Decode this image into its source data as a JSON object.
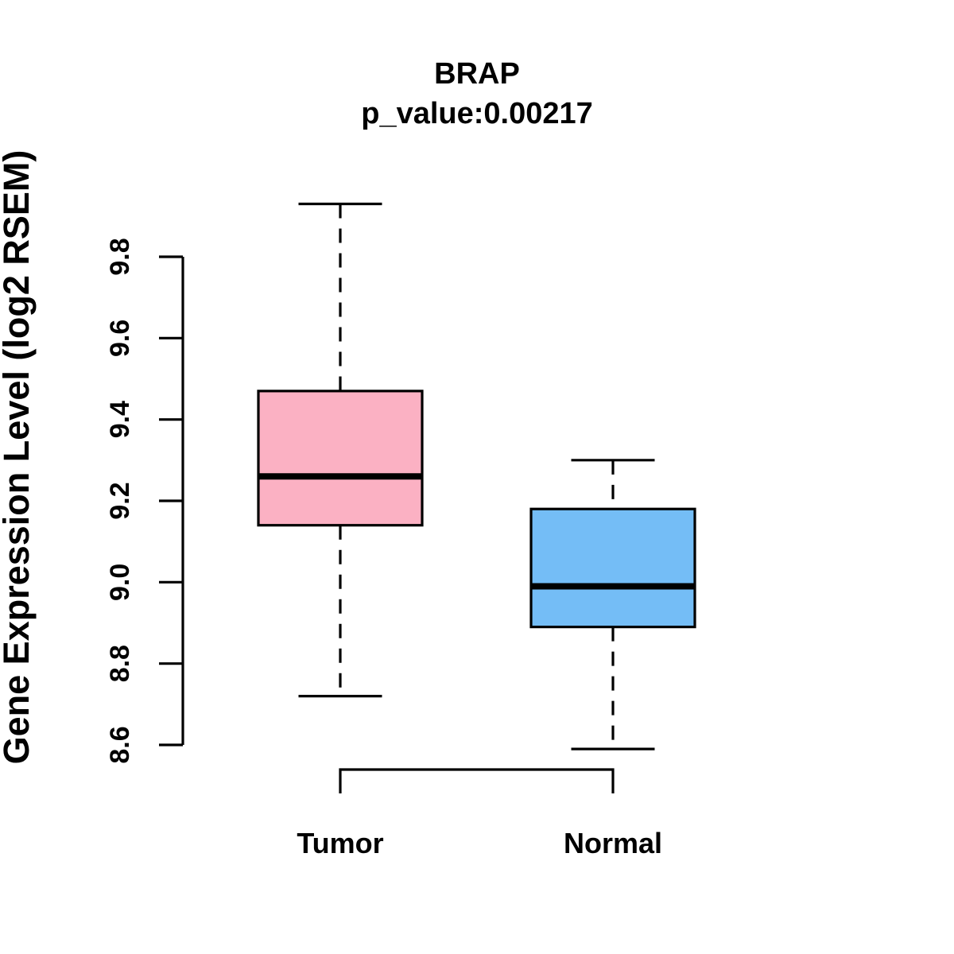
{
  "chart_data": {
    "type": "boxplot",
    "title": "BRAP",
    "subtitle": "p_value:0.00217",
    "p_value": 0.00217,
    "ylabel": "Gene Expression Level (log2 RSEM)",
    "xlabel": "",
    "ylim": [
      8.6,
      9.8
    ],
    "yticks": [
      8.6,
      8.8,
      9.0,
      9.2,
      9.4,
      9.6,
      9.8
    ],
    "ytick_labels": [
      "8.6",
      "8.8",
      "9.0",
      "9.2",
      "9.4",
      "9.6",
      "9.8"
    ],
    "grid": false,
    "legend": "none",
    "groups": [
      {
        "label": "Tumor",
        "color": "#FBB1C3",
        "lower_whisker": 8.72,
        "q1": 9.14,
        "median": 9.26,
        "q3": 9.47,
        "upper_whisker": 9.93
      },
      {
        "label": "Normal",
        "color": "#74BDF6",
        "lower_whisker": 8.59,
        "q1": 8.89,
        "median": 8.99,
        "q3": 9.18,
        "upper_whisker": 9.3
      }
    ],
    "colors": {
      "box_border": "#000000",
      "median_line": "#000000",
      "whisker": "#000000",
      "axis": "#000000",
      "text": "#000000",
      "background": "#FFFFFF"
    }
  }
}
